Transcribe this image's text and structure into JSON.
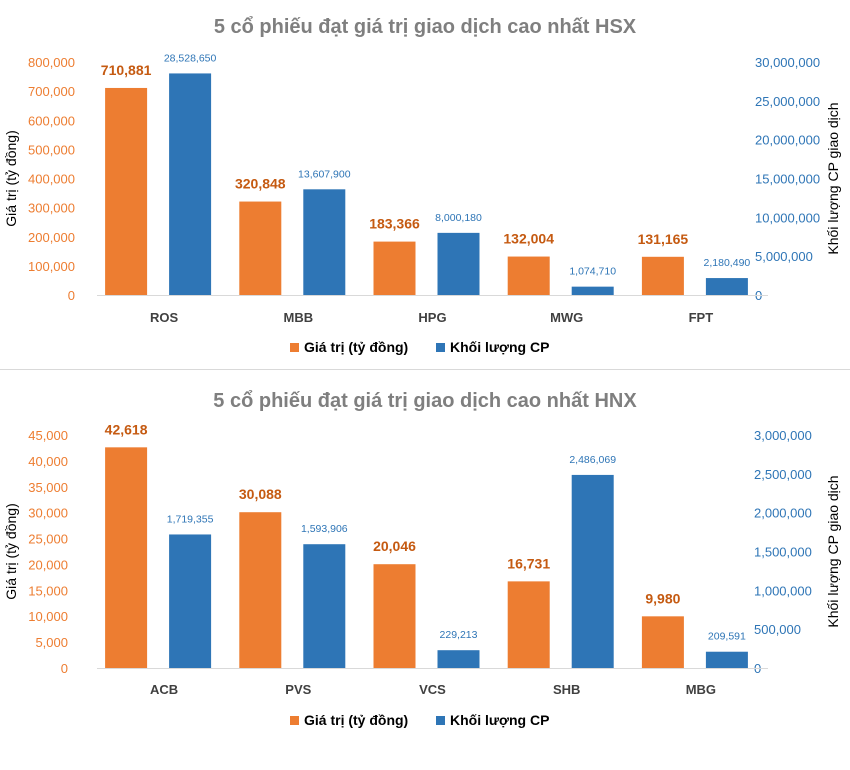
{
  "chart_data": [
    {
      "type": "bar",
      "title": "5 cổ phiếu đạt giá trị giao dịch cao nhất HSX",
      "categories": [
        "ROS",
        "MBB",
        "HPG",
        "MWG",
        "FPT"
      ],
      "series": [
        {
          "name": "Giá trị (tỷ đồng)",
          "axis": "left",
          "color": "#ed7d31",
          "values": [
            710881,
            320848,
            183366,
            132004,
            131165
          ],
          "labels": [
            "710,881",
            "320,848",
            "183,366",
            "132,004",
            "131,165"
          ]
        },
        {
          "name": "Khối lượng CP",
          "axis": "right",
          "color": "#2e75b6",
          "values": [
            28528650,
            13607900,
            8000180,
            1074710,
            2180490
          ],
          "labels": [
            "28,528,650",
            "13,607,900",
            "8,000,180",
            "1,074,710",
            "2,180,490"
          ]
        }
      ],
      "ylabel": "Giá trị (tỷ đồng)",
      "ylabel_right": "Khối lượng CP giao dịch",
      "ylim": [
        0,
        800000
      ],
      "ylim_right": [
        0,
        30000000
      ],
      "yticks": [
        "0",
        "100,000",
        "200,000",
        "300,000",
        "400,000",
        "500,000",
        "600,000",
        "700,000",
        "800,000"
      ],
      "yticks_right": [
        "0",
        "5,000,000",
        "10,000,000",
        "15,000,000",
        "20,000,000",
        "25,000,000",
        "30,000,000"
      ],
      "grid": false,
      "legend": "bottom"
    },
    {
      "type": "bar",
      "title": "5 cổ phiếu đạt giá trị giao dịch cao nhất HNX",
      "categories": [
        "ACB",
        "PVS",
        "VCS",
        "SHB",
        "MBG"
      ],
      "series": [
        {
          "name": "Giá trị (tỷ đồng)",
          "axis": "left",
          "color": "#ed7d31",
          "values": [
            42618,
            30088,
            20046,
            16731,
            9980
          ],
          "labels": [
            "42,618",
            "30,088",
            "20,046",
            "16,731",
            "9,980"
          ]
        },
        {
          "name": "Khối lượng CP",
          "axis": "right",
          "color": "#2e75b6",
          "values": [
            1719355,
            1593906,
            229213,
            2486069,
            209591
          ],
          "labels": [
            "1,719,355",
            "1,593,906",
            "229,213",
            "2,486,069",
            "209,591"
          ]
        }
      ],
      "ylabel": "Giá trị (tỷ đồng)",
      "ylabel_right": "Khối lượng CP giao dịch",
      "ylim": [
        0,
        45000
      ],
      "ylim_right": [
        0,
        3000000
      ],
      "yticks": [
        "0",
        "5,000",
        "10,000",
        "15,000",
        "20,000",
        "25,000",
        "30,000",
        "35,000",
        "40,000",
        "45,000"
      ],
      "yticks_right": [
        "0",
        "500,000",
        "1,000,000",
        "1,500,000",
        "2,000,000",
        "2,500,000",
        "3,000,000"
      ],
      "grid": false,
      "legend": "bottom"
    }
  ]
}
